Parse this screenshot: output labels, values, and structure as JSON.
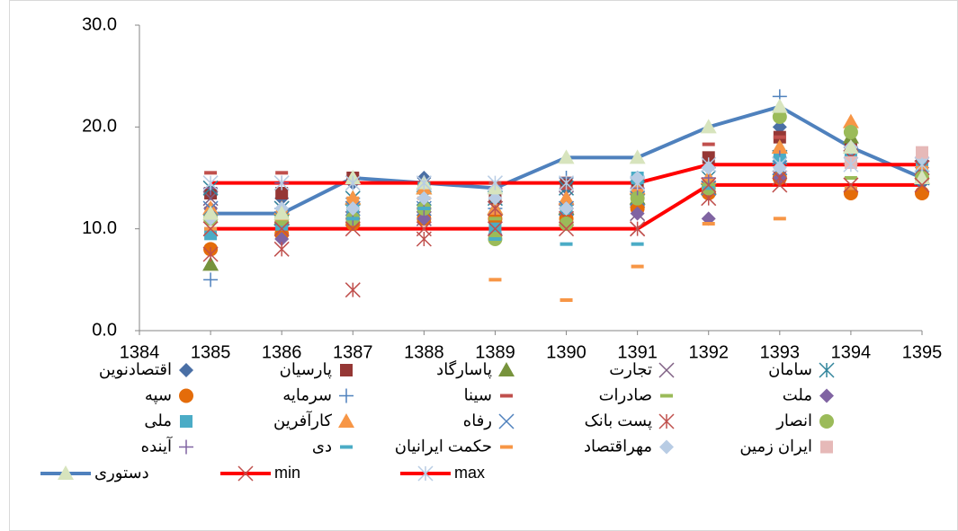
{
  "chart_data": {
    "type": "line",
    "x": [
      1385,
      1386,
      1387,
      1388,
      1389,
      1390,
      1391,
      1392,
      1393,
      1394,
      1395
    ],
    "xlim": [
      1384,
      1395
    ],
    "xticks": [
      1384,
      1385,
      1386,
      1387,
      1388,
      1389,
      1390,
      1391,
      1392,
      1393,
      1394,
      1395
    ],
    "ylim": [
      0,
      30
    ],
    "yticks": [
      {
        "value": 0,
        "label": "0.0"
      },
      {
        "value": 10,
        "label": "10.0"
      },
      {
        "value": 20,
        "label": "20.0"
      },
      {
        "value": 30,
        "label": "30.0"
      }
    ],
    "grid": false,
    "series": [
      {
        "name": "اقتصادنوین",
        "color": "#4a6fa5",
        "marker": "diamond",
        "line": false,
        "values": [
          13.5,
          13,
          14.5,
          15,
          null,
          14,
          15,
          16,
          20,
          18,
          14.5
        ]
      },
      {
        "name": "پارسیان",
        "color": "#953735",
        "marker": "square",
        "line": false,
        "values": [
          13.5,
          13.5,
          15,
          14,
          13,
          14.5,
          14.5,
          17,
          19,
          18,
          17
        ]
      },
      {
        "name": "پاسارگاد",
        "color": "#77933c",
        "marker": "triangle",
        "line": false,
        "values": [
          6.5,
          11,
          13,
          14,
          12,
          12,
          13,
          14,
          18,
          19,
          15
        ]
      },
      {
        "name": "تجارت",
        "color": "#7f6084",
        "marker": "x",
        "line": false,
        "values": [
          13,
          12,
          11,
          11,
          12,
          13,
          11.5,
          14,
          17,
          17,
          16
        ]
      },
      {
        "name": "سامان",
        "color": "#31859c",
        "marker": "asterisk",
        "line": false,
        "values": [
          14,
          12,
          13,
          13,
          13,
          14,
          14,
          15,
          17,
          17,
          15
        ]
      },
      {
        "name": "سپه",
        "color": "#e46c0a",
        "marker": "circle",
        "line": false,
        "values": [
          8,
          9.5,
          10.5,
          11,
          11,
          11,
          12,
          13.5,
          15,
          13.5,
          13.5
        ]
      },
      {
        "name": "سرمایه",
        "color": "#4f81bd",
        "marker": "plus",
        "line": false,
        "values": [
          5,
          12,
          13,
          13,
          12,
          15,
          15,
          16,
          23,
          18,
          15
        ]
      },
      {
        "name": "سینا",
        "color": "#c0504d",
        "marker": "dash",
        "line": false,
        "values": [
          15.5,
          15.5,
          14.5,
          13,
          14.5,
          14,
          14,
          18.3,
          19,
          17,
          16
        ]
      },
      {
        "name": "صادرات",
        "color": "#9bbb59",
        "marker": "dash",
        "line": false,
        "values": [
          12,
          11,
          12,
          12,
          11,
          12,
          13,
          14,
          17,
          15,
          15
        ]
      },
      {
        "name": "ملت",
        "color": "#8064a2",
        "marker": "diamond",
        "line": false,
        "values": [
          12,
          9,
          11,
          11,
          9.5,
          12,
          11.5,
          11,
          15,
          17,
          16
        ]
      },
      {
        "name": "ملی",
        "color": "#4bacc6",
        "marker": "square",
        "line": false,
        "values": [
          9.5,
          10.5,
          12,
          14,
          10,
          12,
          15,
          14,
          17,
          17,
          16
        ]
      },
      {
        "name": "کارآفرین",
        "color": "#f79646",
        "marker": "triangle",
        "line": false,
        "values": [
          12,
          12,
          13,
          14,
          12,
          13,
          14,
          15,
          18,
          20.5,
          15
        ]
      },
      {
        "name": "رفاه",
        "color": "#4f81bd",
        "marker": "x",
        "line": false,
        "values": [
          12,
          11,
          12,
          12,
          12,
          12,
          13,
          14,
          16,
          17,
          16
        ]
      },
      {
        "name": "پست بانک",
        "color": "#c0504d",
        "marker": "asterisk",
        "line": false,
        "values": [
          7.5,
          8,
          4,
          9,
          12,
          11,
          10,
          13,
          15,
          17,
          16
        ]
      },
      {
        "name": "انصار",
        "color": "#9bbb59",
        "marker": "circle",
        "line": false,
        "values": [
          11,
          11,
          11,
          12,
          9,
          10.5,
          13,
          14,
          21,
          19.5,
          15
        ]
      },
      {
        "name": "آینده",
        "color": "#8064a2",
        "marker": "plus",
        "line": false,
        "values": [
          14,
          14.5,
          11,
          12,
          14,
          12,
          14,
          15,
          17,
          18,
          17
        ]
      },
      {
        "name": "دی",
        "color": "#4bacc6",
        "marker": "dash",
        "line": false,
        "values": [
          10,
          10,
          11,
          12,
          9,
          8.5,
          8.5,
          14,
          17,
          14,
          16
        ]
      },
      {
        "name": "حکمت ایرانیان",
        "color": "#f79646",
        "marker": "dash",
        "line": false,
        "values": [
          10,
          11,
          13,
          13,
          5,
          3,
          6.3,
          10.5,
          11,
          14,
          16
        ]
      },
      {
        "name": "مهراقتصاد",
        "color": "#b8cce4",
        "marker": "diamond",
        "line": false,
        "values": [
          11,
          12,
          12,
          13,
          13,
          12,
          15,
          16,
          16,
          18,
          17
        ]
      },
      {
        "name": "ایران زمین",
        "color": "#e6b9b8",
        "marker": "square",
        "line": false,
        "values": [
          null,
          null,
          null,
          null,
          null,
          null,
          null,
          null,
          null,
          16.5,
          17.5
        ]
      },
      {
        "name": "دستوری",
        "color": "#4f81bd",
        "marker": "triangle",
        "marker_color": "#d7e4bd",
        "line": true,
        "values": [
          11.5,
          11.5,
          15,
          14.5,
          14,
          17,
          17,
          20,
          22,
          18,
          15
        ]
      },
      {
        "name": "min",
        "color": "#ff0000",
        "marker": "x",
        "marker_color": "#c0504d",
        "line": true,
        "values": [
          10,
          10,
          10,
          10,
          10,
          10,
          10,
          14.3,
          14.3,
          14.3,
          14.3
        ]
      },
      {
        "name": "max",
        "color": "#ff0000",
        "marker": "asterisk",
        "marker_color": "#b8cce4",
        "line": true,
        "values": [
          14.5,
          14.5,
          14.5,
          14.5,
          14.5,
          14.5,
          14.5,
          16.3,
          16.3,
          16.3,
          16.3
        ]
      }
    ]
  }
}
